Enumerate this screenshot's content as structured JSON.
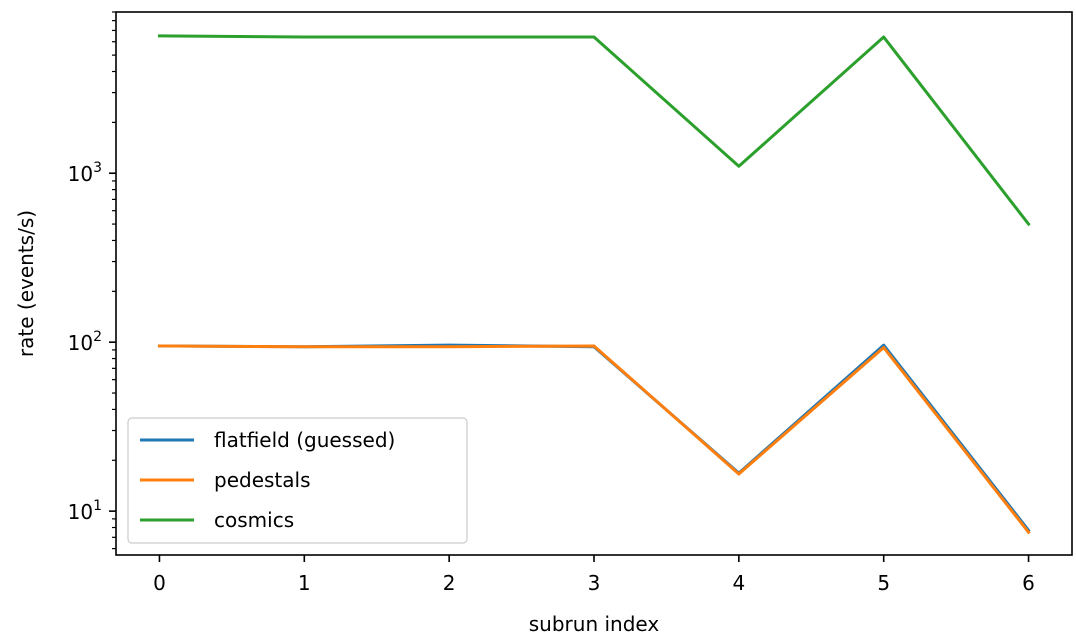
{
  "chart_data": {
    "type": "line",
    "xlabel": "subrun index",
    "ylabel": "rate (events/s)",
    "x": [
      0,
      1,
      2,
      3,
      4,
      5,
      6
    ],
    "x_ticks": [
      0,
      1,
      2,
      3,
      4,
      5,
      6
    ],
    "xlim": [
      -0.3,
      6.3
    ],
    "y_scale": "log",
    "ylim": [
      5.5,
      9000
    ],
    "y_major_ticks": [
      {
        "value": 10,
        "base": "10",
        "exp": "1"
      },
      {
        "value": 100,
        "base": "10",
        "exp": "2"
      },
      {
        "value": 1000,
        "base": "10",
        "exp": "3"
      }
    ],
    "legend_position": "lower-left",
    "grid": false,
    "series": [
      {
        "name": "flatfield (guessed)",
        "color": "#1f77b4",
        "values": [
          95,
          94,
          96,
          94,
          16.8,
          96,
          7.7
        ]
      },
      {
        "name": "pedestals",
        "color": "#ff7f0e",
        "values": [
          95,
          94,
          94,
          95,
          16.6,
          93,
          7.5
        ]
      },
      {
        "name": "cosmics",
        "color": "#2ca02c",
        "values": [
          6500,
          6400,
          6400,
          6400,
          1100,
          6400,
          500
        ]
      }
    ]
  }
}
